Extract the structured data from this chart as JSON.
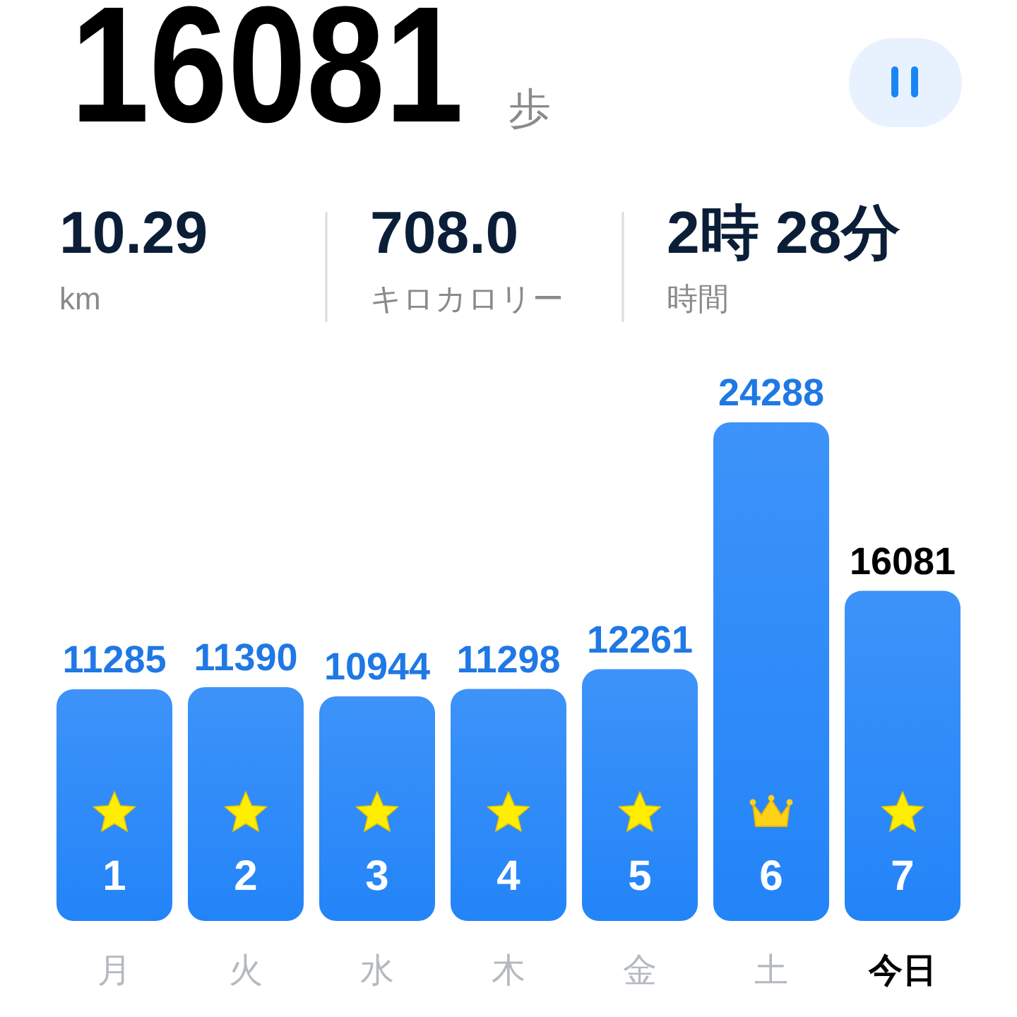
{
  "chart_data": [
    {
      "type": "other",
      "title": "16081",
      "subtitle": "歩",
      "annotations": [
        "10.29",
        "km",
        "708.0",
        "キロカロリー",
        "2時 28分",
        "時間"
      ]
    },
    {
      "type": "bar",
      "categories": [
        "月",
        "火",
        "水",
        "木",
        "金",
        "土",
        "今日"
      ],
      "values": [
        11285,
        11390,
        10944,
        11298,
        12261,
        24288,
        16081
      ],
      "color": "#2384f8",
      "data_labels": true,
      "annotations": [
        "1",
        "2",
        "3",
        "4",
        "5",
        "6",
        "7"
      ]
    }
  ]
}
